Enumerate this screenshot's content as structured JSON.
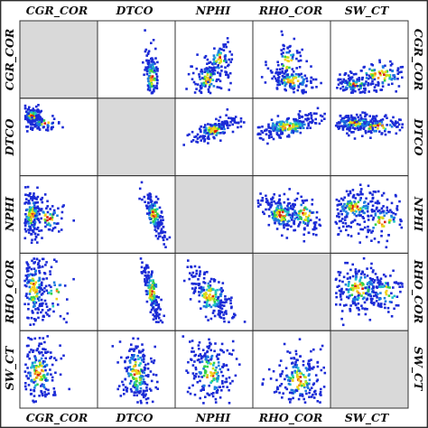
{
  "chart_data": {
    "type": "scatter",
    "subtype": "scatter-matrix-density",
    "variables": [
      "CGR_COR",
      "DTCO",
      "NPHI",
      "RHO_COR",
      "SW_CT"
    ],
    "diagonal": "blank (gray)",
    "color_scale": [
      "#1b2bd6",
      "#1e7be0",
      "#1fc4c8",
      "#34d24a",
      "#c9e21a",
      "#f3d21b",
      "#f08a18",
      "#d81f12"
    ],
    "colors": {
      "background": "#ffffff",
      "diagonal": "#d9d9d9",
      "grid": "#333333"
    },
    "labels": {
      "top": [
        "CGR_COR",
        "DTCO",
        "NPHI",
        "RHO_COR",
        "SW_CT"
      ],
      "bottom": [
        "CGR_COR",
        "DTCO",
        "NPHI",
        "RHO_COR",
        "SW_CT"
      ],
      "left": [
        "CGR_COR",
        "DTCO",
        "NPHI",
        "RHO_COR",
        "SW_CT"
      ],
      "right": [
        "CGR_COR",
        "DTCO",
        "NPHI",
        "RHO_COR",
        "SW_CT"
      ]
    },
    "panels": [
      {
        "row": 0,
        "col": 1,
        "clusters": [
          {
            "cx": 0.72,
            "cy": 0.75,
            "sx": 0.06,
            "sy": 0.2,
            "rho": -0.3,
            "n": 130
          }
        ]
      },
      {
        "row": 0,
        "col": 2,
        "clusters": [
          {
            "cx": 0.42,
            "cy": 0.78,
            "sx": 0.12,
            "sy": 0.14,
            "rho": 0.2,
            "n": 120
          },
          {
            "cx": 0.58,
            "cy": 0.5,
            "sx": 0.1,
            "sy": 0.14,
            "rho": 0.4,
            "n": 70
          }
        ]
      },
      {
        "row": 0,
        "col": 3,
        "clusters": [
          {
            "cx": 0.5,
            "cy": 0.8,
            "sx": 0.2,
            "sy": 0.1,
            "rho": -0.4,
            "n": 130
          },
          {
            "cx": 0.45,
            "cy": 0.55,
            "sx": 0.12,
            "sy": 0.16,
            "rho": 0.3,
            "n": 60
          }
        ]
      },
      {
        "row": 0,
        "col": 4,
        "clusters": [
          {
            "cx": 0.3,
            "cy": 0.86,
            "sx": 0.18,
            "sy": 0.07,
            "rho": 0.0,
            "n": 130
          },
          {
            "cx": 0.65,
            "cy": 0.72,
            "sx": 0.25,
            "sy": 0.13,
            "rho": 0.5,
            "n": 100
          }
        ]
      },
      {
        "row": 1,
        "col": 0,
        "clusters": [
          {
            "cx": 0.12,
            "cy": 0.2,
            "sx": 0.08,
            "sy": 0.07,
            "rho": 0.0,
            "n": 160
          },
          {
            "cx": 0.3,
            "cy": 0.3,
            "sx": 0.12,
            "sy": 0.05,
            "rho": 0.0,
            "n": 60
          }
        ]
      },
      {
        "row": 1,
        "col": 2,
        "clusters": [
          {
            "cx": 0.5,
            "cy": 0.4,
            "sx": 0.16,
            "sy": 0.08,
            "rho": 0.7,
            "n": 170
          }
        ]
      },
      {
        "row": 1,
        "col": 3,
        "clusters": [
          {
            "cx": 0.45,
            "cy": 0.35,
            "sx": 0.25,
            "sy": 0.09,
            "rho": 0.7,
            "n": 230
          }
        ]
      },
      {
        "row": 1,
        "col": 4,
        "clusters": [
          {
            "cx": 0.3,
            "cy": 0.3,
            "sx": 0.22,
            "sy": 0.06,
            "rho": 0.0,
            "n": 200
          },
          {
            "cx": 0.6,
            "cy": 0.35,
            "sx": 0.25,
            "sy": 0.07,
            "rho": 0.3,
            "n": 80
          }
        ]
      },
      {
        "row": 2,
        "col": 0,
        "clusters": [
          {
            "cx": 0.12,
            "cy": 0.5,
            "sx": 0.08,
            "sy": 0.2,
            "rho": 0.0,
            "n": 170
          },
          {
            "cx": 0.35,
            "cy": 0.55,
            "sx": 0.14,
            "sy": 0.12,
            "rho": 0.2,
            "n": 60
          }
        ]
      },
      {
        "row": 2,
        "col": 1,
        "clusters": [
          {
            "cx": 0.75,
            "cy": 0.5,
            "sx": 0.08,
            "sy": 0.17,
            "rho": -0.8,
            "n": 150
          }
        ]
      },
      {
        "row": 2,
        "col": 3,
        "clusters": [
          {
            "cx": 0.35,
            "cy": 0.5,
            "sx": 0.16,
            "sy": 0.14,
            "rho": -0.5,
            "n": 170
          },
          {
            "cx": 0.68,
            "cy": 0.5,
            "sx": 0.16,
            "sy": 0.16,
            "rho": -0.6,
            "n": 90
          }
        ]
      },
      {
        "row": 2,
        "col": 4,
        "clusters": [
          {
            "cx": 0.3,
            "cy": 0.4,
            "sx": 0.2,
            "sy": 0.12,
            "rho": 0.2,
            "n": 190
          },
          {
            "cx": 0.7,
            "cy": 0.6,
            "sx": 0.2,
            "sy": 0.14,
            "rho": 0.6,
            "n": 90
          }
        ]
      },
      {
        "row": 3,
        "col": 0,
        "clusters": [
          {
            "cx": 0.15,
            "cy": 0.45,
            "sx": 0.1,
            "sy": 0.28,
            "rho": 0.0,
            "n": 190
          },
          {
            "cx": 0.45,
            "cy": 0.55,
            "sx": 0.12,
            "sy": 0.22,
            "rho": 0.0,
            "n": 40
          }
        ]
      },
      {
        "row": 3,
        "col": 1,
        "clusters": [
          {
            "cx": 0.72,
            "cy": 0.5,
            "sx": 0.07,
            "sy": 0.24,
            "rho": -0.8,
            "n": 160
          }
        ]
      },
      {
        "row": 3,
        "col": 2,
        "clusters": [
          {
            "cx": 0.45,
            "cy": 0.55,
            "sx": 0.16,
            "sy": 0.2,
            "rho": -0.7,
            "n": 200
          }
        ]
      },
      {
        "row": 3,
        "col": 4,
        "clusters": [
          {
            "cx": 0.35,
            "cy": 0.45,
            "sx": 0.22,
            "sy": 0.18,
            "rho": 0.0,
            "n": 220
          },
          {
            "cx": 0.75,
            "cy": 0.5,
            "sx": 0.15,
            "sy": 0.16,
            "rho": 0.0,
            "n": 70
          }
        ]
      },
      {
        "row": 4,
        "col": 0,
        "clusters": [
          {
            "cx": 0.22,
            "cy": 0.55,
            "sx": 0.14,
            "sy": 0.26,
            "rho": 0.0,
            "n": 200
          }
        ]
      },
      {
        "row": 4,
        "col": 1,
        "clusters": [
          {
            "cx": 0.5,
            "cy": 0.55,
            "sx": 0.12,
            "sy": 0.28,
            "rho": 0.0,
            "n": 210
          }
        ]
      },
      {
        "row": 4,
        "col": 2,
        "clusters": [
          {
            "cx": 0.45,
            "cy": 0.55,
            "sx": 0.16,
            "sy": 0.26,
            "rho": -0.2,
            "n": 200
          }
        ]
      },
      {
        "row": 4,
        "col": 3,
        "clusters": [
          {
            "cx": 0.6,
            "cy": 0.65,
            "sx": 0.18,
            "sy": 0.22,
            "rho": 0.0,
            "n": 200
          }
        ]
      }
    ]
  }
}
